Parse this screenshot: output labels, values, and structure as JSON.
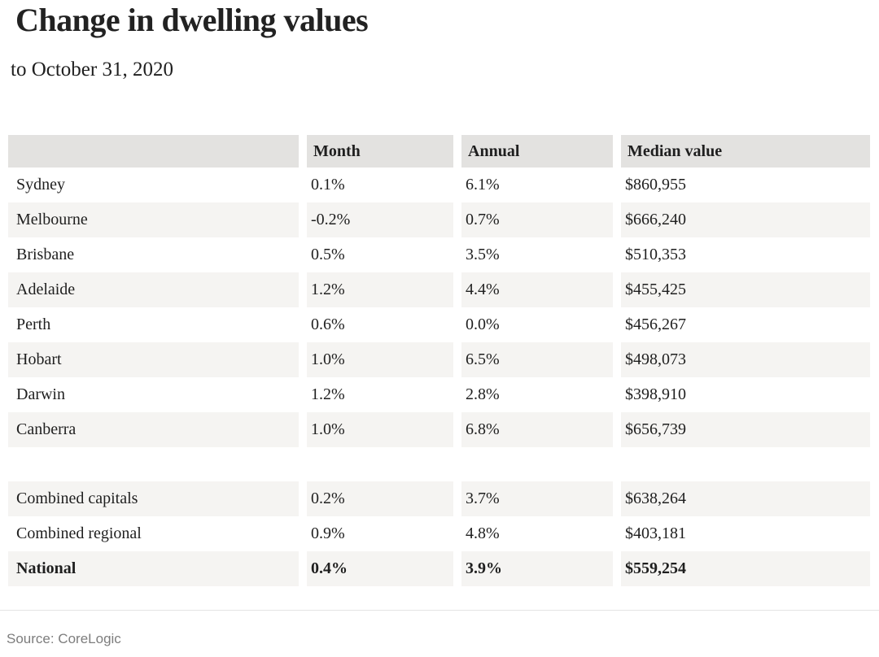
{
  "chart_data": {
    "type": "table",
    "title": "Change in dwelling values",
    "subtitle": "to October 31, 2020",
    "columns": [
      "",
      "Month",
      "Annual",
      "Median value"
    ],
    "rows": [
      {
        "region": "Sydney",
        "month": "0.1%",
        "annual": "6.1%",
        "median_value": "$860,955"
      },
      {
        "region": "Melbourne",
        "month": "-0.2%",
        "annual": "0.7%",
        "median_value": "$666,240"
      },
      {
        "region": "Brisbane",
        "month": "0.5%",
        "annual": "3.5%",
        "median_value": "$510,353"
      },
      {
        "region": "Adelaide",
        "month": "1.2%",
        "annual": "4.4%",
        "median_value": "$455,425"
      },
      {
        "region": "Perth",
        "month": "0.6%",
        "annual": "0.0%",
        "median_value": "$456,267"
      },
      {
        "region": "Hobart",
        "month": "1.0%",
        "annual": "6.5%",
        "median_value": "$498,073"
      },
      {
        "region": "Darwin",
        "month": "1.2%",
        "annual": "2.8%",
        "median_value": "$398,910"
      },
      {
        "region": "Canberra",
        "month": "1.0%",
        "annual": "6.8%",
        "median_value": "$656,739"
      },
      {
        "region": "Combined capitals",
        "month": "0.2%",
        "annual": "3.7%",
        "median_value": "$638,264"
      },
      {
        "region": "Combined regional",
        "month": "0.9%",
        "annual": "4.8%",
        "median_value": "$403,181"
      },
      {
        "region": "National",
        "month": "0.4%",
        "annual": "3.9%",
        "median_value": "$559,254"
      }
    ],
    "source": "Source: CoreLogic",
    "colors": {
      "header_bg": "#e3e2e0",
      "stripe_bg": "#f5f4f2",
      "row_bg": "#ffffff",
      "text": "#1f1f1f",
      "source_text": "#7d7d7d",
      "divider": "#e4e4e4"
    },
    "layout": {
      "stripe_pattern": "alternating, header and even data rows shaded",
      "bold_rows": [
        "National"
      ],
      "spacer_after_row": "Canberra"
    }
  }
}
